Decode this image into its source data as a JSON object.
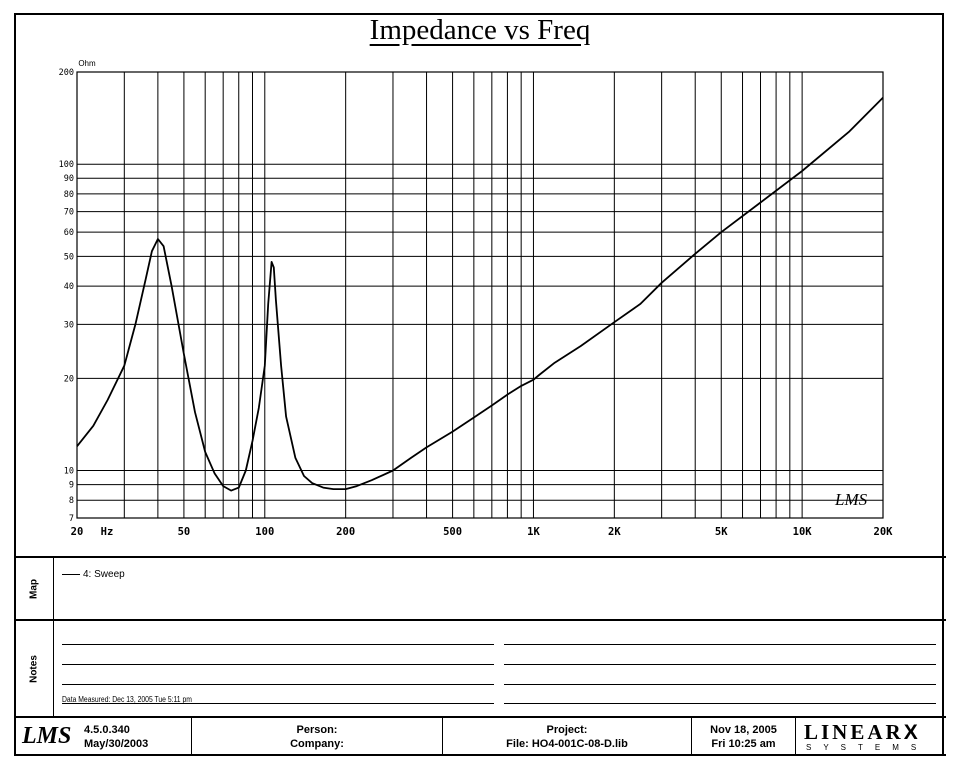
{
  "chart_data": {
    "type": "line",
    "title": "Impedance vs Freq",
    "ylabel": "Ohm",
    "xlabel": "Hz",
    "xscale": "log",
    "yscale": "log",
    "xlim": [
      20,
      20000
    ],
    "ylim": [
      7,
      200
    ],
    "x_ticks": [
      {
        "v": 20,
        "label": "20"
      },
      {
        "v": 50,
        "label": "50"
      },
      {
        "v": 100,
        "label": "100"
      },
      {
        "v": 200,
        "label": "200"
      },
      {
        "v": 500,
        "label": "500"
      },
      {
        "v": 1000,
        "label": "1K"
      },
      {
        "v": 2000,
        "label": "2K"
      },
      {
        "v": 5000,
        "label": "5K"
      },
      {
        "v": 10000,
        "label": "10K"
      },
      {
        "v": 20000,
        "label": "20K"
      }
    ],
    "y_ticks": [
      {
        "v": 7,
        "label": "7"
      },
      {
        "v": 8,
        "label": "8"
      },
      {
        "v": 9,
        "label": "9"
      },
      {
        "v": 10,
        "label": "10"
      },
      {
        "v": 20,
        "label": "20"
      },
      {
        "v": 30,
        "label": "30"
      },
      {
        "v": 40,
        "label": "40"
      },
      {
        "v": 50,
        "label": "50"
      },
      {
        "v": 60,
        "label": "60"
      },
      {
        "v": 70,
        "label": "70"
      },
      {
        "v": 80,
        "label": "80"
      },
      {
        "v": 90,
        "label": "90"
      },
      {
        "v": 100,
        "label": "100"
      },
      {
        "v": 200,
        "label": "200"
      }
    ],
    "grid": true,
    "series": [
      {
        "name": "4: Sweep",
        "x": [
          20,
          23,
          26,
          30,
          33,
          36,
          38,
          40,
          42,
          45,
          50,
          55,
          60,
          65,
          70,
          75,
          80,
          85,
          90,
          95,
          100,
          103,
          106,
          108,
          110,
          115,
          120,
          130,
          140,
          150,
          165,
          180,
          200,
          220,
          250,
          300,
          350,
          400,
          500,
          600,
          700,
          800,
          900,
          1000,
          1050,
          1200,
          1500,
          2000,
          2500,
          3000,
          4000,
          5000,
          7000,
          10000,
          15000,
          20000
        ],
        "y": [
          12,
          14,
          17,
          22,
          30,
          42,
          52,
          57,
          54,
          40,
          24,
          15.5,
          11.5,
          9.8,
          8.9,
          8.6,
          8.8,
          10,
          12.5,
          16,
          22,
          35,
          48,
          46,
          36,
          22,
          15,
          11,
          9.6,
          9.1,
          8.8,
          8.7,
          8.7,
          8.9,
          9.3,
          10,
          11,
          11.9,
          13.4,
          14.9,
          16.3,
          17.7,
          18.9,
          19.8,
          20.5,
          22.5,
          25.5,
          30.5,
          35,
          41,
          51,
          60,
          75,
          95,
          128,
          165
        ]
      }
    ]
  },
  "map": {
    "label": "Map",
    "legend_entry": "4: Sweep"
  },
  "notes": {
    "label": "Notes",
    "measured": "Data Measured: Dec 13, 2005  Tue  5:11 pm"
  },
  "logo_small": "LMS",
  "footer": {
    "logo": "LMS",
    "version": "4.5.0.340",
    "version_date": "May/30/2003",
    "person_label": "Person:",
    "company_label": "Company:",
    "project_label": "Project:",
    "file_label": "File: HO4-001C-08-D.lib",
    "date": "Nov 18, 2005",
    "time": "Fri 10:25 am",
    "brand": "LINEAR",
    "brand_x": "X",
    "brand_sub": "SYSTEMS"
  }
}
